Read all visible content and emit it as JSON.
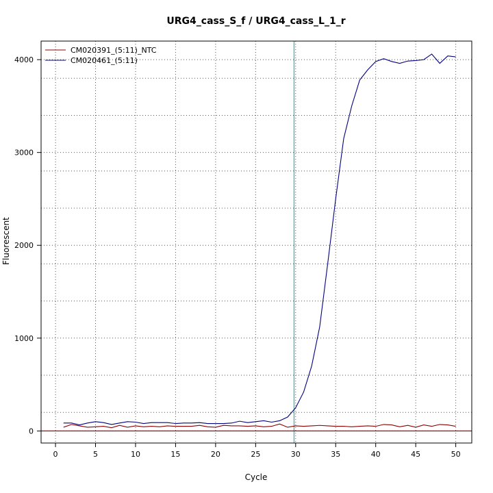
{
  "chart_data": {
    "type": "line",
    "title": "URG4_cass_S_f / URG4_cass_L_1_r",
    "xlabel": "Cycle",
    "ylabel": "Fluorescent",
    "xlim": [
      -1.8,
      52
    ],
    "ylim": [
      -130,
      4200
    ],
    "x_ticks": [
      0,
      5,
      10,
      15,
      20,
      25,
      30,
      35,
      40,
      45,
      50
    ],
    "y_ticks": [
      0,
      1000,
      2000,
      3000,
      4000
    ],
    "minor_y_grid": [
      200,
      600,
      1400,
      1800,
      2400,
      2800,
      3400,
      3800
    ],
    "grid": true,
    "legend_position": "top-left",
    "threshold_line": {
      "orientation": "vertical",
      "x": 29.8,
      "color": "#00c8c8"
    },
    "baseline": {
      "orientation": "horizontal",
      "y": 0,
      "color": "#c00000"
    },
    "x": [
      1,
      2,
      3,
      4,
      5,
      6,
      7,
      8,
      9,
      10,
      11,
      12,
      13,
      14,
      15,
      16,
      17,
      18,
      19,
      20,
      21,
      22,
      23,
      24,
      25,
      26,
      27,
      28,
      29,
      30,
      31,
      32,
      33,
      34,
      35,
      36,
      37,
      38,
      39,
      40,
      41,
      42,
      43,
      44,
      45,
      46,
      47,
      48,
      49,
      50
    ],
    "series": [
      {
        "name": "CM020391_(5:11)_NTC",
        "color": "#8b0000",
        "values": [
          40,
          70,
          55,
          40,
          45,
          50,
          35,
          60,
          40,
          55,
          45,
          50,
          45,
          55,
          50,
          50,
          50,
          60,
          45,
          40,
          60,
          55,
          55,
          50,
          55,
          45,
          50,
          75,
          40,
          55,
          50,
          55,
          60,
          55,
          50,
          50,
          45,
          50,
          55,
          50,
          70,
          65,
          45,
          60,
          40,
          65,
          50,
          70,
          65,
          50
        ]
      },
      {
        "name": "CM020461_(5:11)",
        "color": "#000080",
        "values": [
          85,
          85,
          65,
          85,
          100,
          90,
          70,
          85,
          100,
          95,
          80,
          90,
          90,
          90,
          80,
          85,
          85,
          90,
          80,
          80,
          80,
          85,
          105,
          90,
          100,
          110,
          95,
          110,
          150,
          250,
          420,
          700,
          1120,
          1800,
          2500,
          3150,
          3500,
          3780,
          3890,
          3980,
          4010,
          3980,
          3960,
          3985,
          3990,
          4000,
          4060,
          3960,
          4040,
          4030
        ]
      }
    ]
  }
}
